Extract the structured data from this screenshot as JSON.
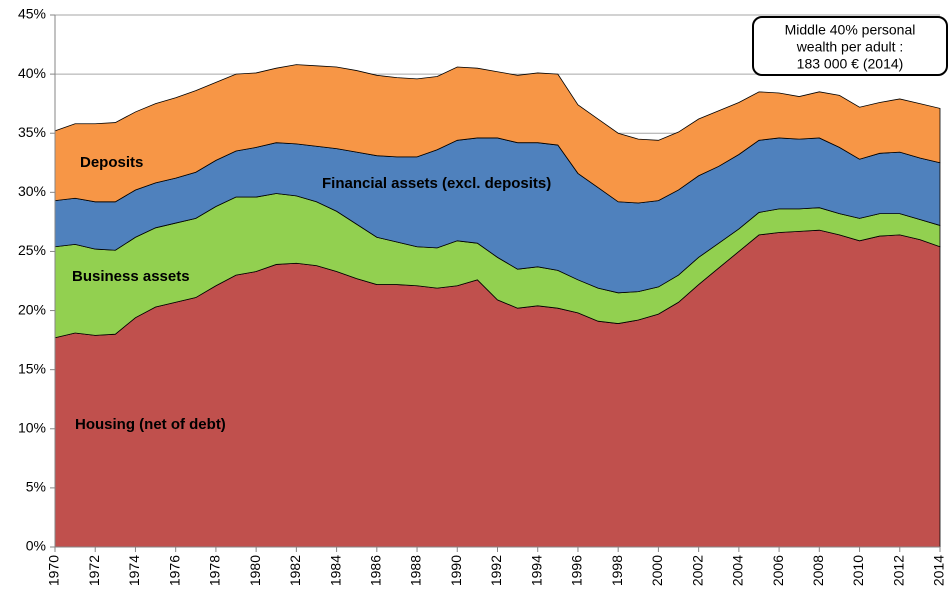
{
  "chart_data": {
    "type": "stacked_area",
    "annotation": [
      "Middle 40% personal",
      "wealth per adult :",
      "183 000 € (2014)"
    ],
    "x": [
      1970,
      1971,
      1972,
      1973,
      1974,
      1975,
      1976,
      1977,
      1978,
      1979,
      1980,
      1981,
      1982,
      1983,
      1984,
      1985,
      1986,
      1987,
      1988,
      1989,
      1990,
      1991,
      1992,
      1993,
      1994,
      1995,
      1996,
      1997,
      1998,
      1999,
      2000,
      2001,
      2002,
      2003,
      2004,
      2005,
      2006,
      2007,
      2008,
      2009,
      2010,
      2011,
      2012,
      2013,
      2014
    ],
    "xlim": [
      1970,
      2014
    ],
    "xticks": [
      1970,
      1972,
      1974,
      1976,
      1978,
      1980,
      1982,
      1984,
      1986,
      1988,
      1990,
      1992,
      1994,
      1996,
      1998,
      2000,
      2002,
      2004,
      2006,
      2008,
      2010,
      2012,
      2014
    ],
    "ylim": [
      0,
      45
    ],
    "yticks": [
      {
        "value": 0,
        "label": "0%"
      },
      {
        "value": 5,
        "label": "5%"
      },
      {
        "value": 10,
        "label": "10%"
      },
      {
        "value": 15,
        "label": "15%"
      },
      {
        "value": 20,
        "label": "20%"
      },
      {
        "value": 25,
        "label": "25%"
      },
      {
        "value": 30,
        "label": "30%"
      },
      {
        "value": 35,
        "label": "35%"
      },
      {
        "value": 40,
        "label": "40%"
      },
      {
        "value": 45,
        "label": "45%"
      }
    ],
    "grid": true,
    "series": [
      {
        "name": "Housing (net of debt)",
        "color": "#c0504d",
        "values": [
          17.7,
          18.1,
          17.9,
          18.0,
          19.4,
          20.3,
          20.7,
          21.1,
          22.1,
          23.0,
          23.3,
          23.9,
          24.0,
          23.8,
          23.3,
          22.7,
          22.2,
          22.2,
          22.1,
          21.9,
          22.1,
          22.6,
          20.9,
          20.2,
          20.4,
          20.2,
          19.8,
          19.1,
          18.9,
          19.2,
          19.7,
          20.7,
          22.2,
          23.6,
          25.0,
          26.4,
          26.6,
          26.7,
          26.8,
          26.4,
          25.9,
          26.3,
          26.4,
          26.0,
          25.4
        ]
      },
      {
        "name": "Business assets",
        "color": "#92d050",
        "values": [
          7.7,
          7.5,
          7.3,
          7.1,
          6.8,
          6.7,
          6.7,
          6.7,
          6.7,
          6.6,
          6.3,
          6.0,
          5.7,
          5.4,
          5.1,
          4.6,
          4.0,
          3.6,
          3.3,
          3.4,
          3.8,
          3.1,
          3.6,
          3.3,
          3.3,
          3.2,
          2.8,
          2.8,
          2.6,
          2.4,
          2.3,
          2.3,
          2.3,
          2.1,
          1.9,
          1.9,
          2.0,
          1.9,
          1.9,
          1.8,
          1.9,
          1.9,
          1.8,
          1.7,
          1.8
        ]
      },
      {
        "name": "Financial assets  (excl. deposits)",
        "color": "#4f81bd",
        "values": [
          3.9,
          3.9,
          4.0,
          4.1,
          4.0,
          3.8,
          3.8,
          3.9,
          3.9,
          3.9,
          4.2,
          4.3,
          4.4,
          4.7,
          5.3,
          6.1,
          6.9,
          7.2,
          7.6,
          8.3,
          8.5,
          8.9,
          10.1,
          10.7,
          10.5,
          10.6,
          9.0,
          8.5,
          7.7,
          7.5,
          7.3,
          7.2,
          6.9,
          6.5,
          6.3,
          6.1,
          6.0,
          5.9,
          5.9,
          5.6,
          5.0,
          5.1,
          5.2,
          5.2,
          5.3
        ]
      },
      {
        "name": "Deposits",
        "color": "#f79646",
        "values": [
          5.9,
          6.3,
          6.6,
          6.7,
          6.6,
          6.7,
          6.8,
          6.9,
          6.6,
          6.5,
          6.3,
          6.3,
          6.7,
          6.8,
          6.9,
          6.9,
          6.8,
          6.7,
          6.6,
          6.2,
          6.2,
          5.9,
          5.6,
          5.7,
          5.9,
          6.0,
          5.8,
          5.8,
          5.8,
          5.4,
          5.1,
          4.9,
          4.8,
          4.7,
          4.4,
          4.1,
          3.8,
          3.6,
          3.9,
          4.4,
          4.4,
          4.3,
          4.5,
          4.6,
          4.6
        ]
      }
    ]
  }
}
